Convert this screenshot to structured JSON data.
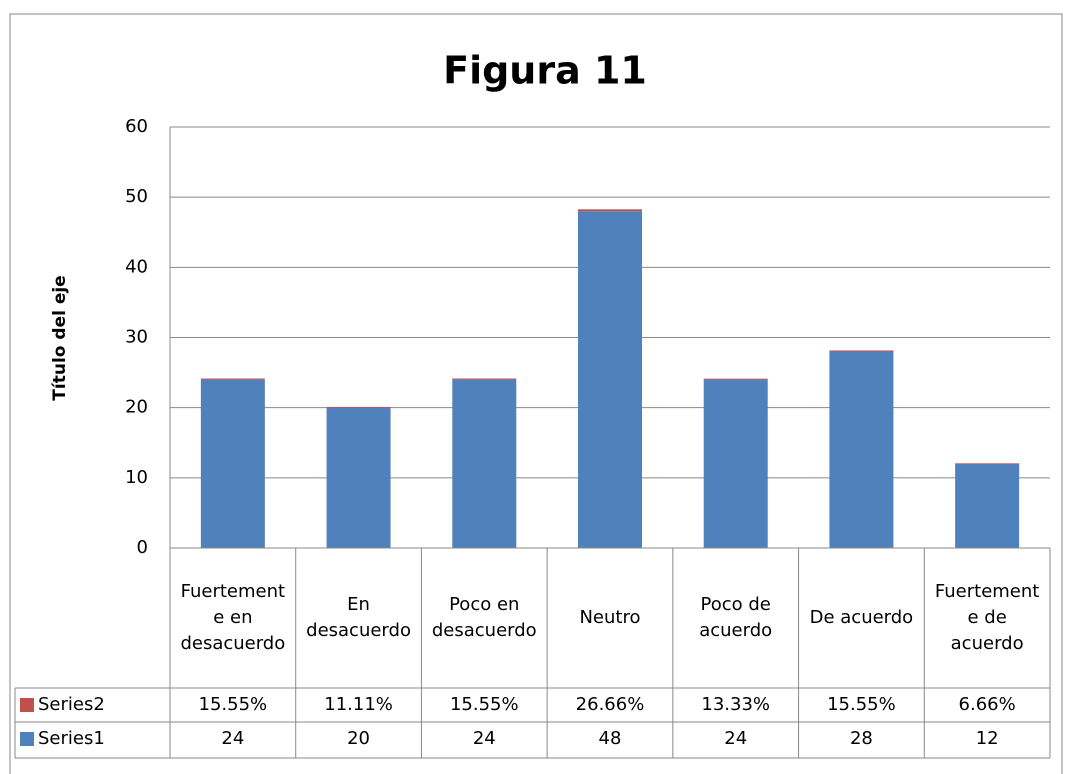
{
  "chart_data": {
    "type": "bar",
    "stacked": true,
    "title": "Figura 11",
    "y_label": "Título del eje",
    "categories": [
      "Fuertemente en desacuerdo",
      "En desacuerdo",
      "Poco en desacuerdo",
      "Neutro",
      "Poco de acuerdo",
      "De acuerdo",
      "Fuertemente de acuerdo"
    ],
    "series": [
      {
        "name": "Series1",
        "color": "#4f81bd",
        "values": [
          24,
          20,
          24,
          48,
          24,
          28,
          12
        ]
      },
      {
        "name": "Series2",
        "color": "#c0504d",
        "values": [
          0.1555,
          0.1111,
          0.1555,
          0.2666,
          0.1333,
          0.1555,
          0.0666
        ],
        "value_labels": [
          "15.55%",
          "11.11%",
          "15.55%",
          "26.66%",
          "13.33%",
          "15.55%",
          "6.66%"
        ]
      }
    ],
    "ylim": [
      0,
      60
    ],
    "yticks": [
      0,
      10,
      20,
      30,
      40,
      50,
      60
    ],
    "grid": true,
    "data_table": true
  }
}
